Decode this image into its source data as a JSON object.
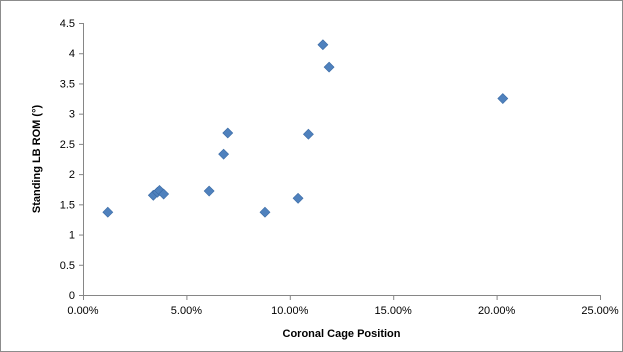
{
  "chart_data": {
    "type": "scatter",
    "title": "",
    "xlabel": "Coronal Cage Position",
    "ylabel": "Standing LB ROM (°)",
    "xlim": [
      0,
      0.25
    ],
    "ylim": [
      0,
      4.5
    ],
    "x_ticks": [
      {
        "value": 0,
        "label": "0.00%"
      },
      {
        "value": 0.05,
        "label": "5.00%"
      },
      {
        "value": 0.1,
        "label": "10.00%"
      },
      {
        "value": 0.15,
        "label": "15.00%"
      },
      {
        "value": 0.2,
        "label": "20.00%"
      },
      {
        "value": 0.25,
        "label": "25.00%"
      }
    ],
    "y_ticks": [
      {
        "value": 0,
        "label": "0"
      },
      {
        "value": 0.5,
        "label": "0.5"
      },
      {
        "value": 1,
        "label": "1"
      },
      {
        "value": 1.5,
        "label": "1.5"
      },
      {
        "value": 2,
        "label": "2"
      },
      {
        "value": 2.5,
        "label": "2.5"
      },
      {
        "value": 3,
        "label": "3"
      },
      {
        "value": 3.5,
        "label": "3.5"
      },
      {
        "value": 4,
        "label": "4"
      },
      {
        "value": 4.5,
        "label": "4.5"
      }
    ],
    "grid": false,
    "legend": "none",
    "marker": "diamond",
    "color": "#4f81bd",
    "points": [
      {
        "x": 0.012,
        "y": 1.37
      },
      {
        "x": 0.034,
        "y": 1.65
      },
      {
        "x": 0.036,
        "y": 1.7
      },
      {
        "x": 0.037,
        "y": 1.73
      },
      {
        "x": 0.039,
        "y": 1.67
      },
      {
        "x": 0.061,
        "y": 1.72
      },
      {
        "x": 0.068,
        "y": 2.33
      },
      {
        "x": 0.07,
        "y": 2.68
      },
      {
        "x": 0.088,
        "y": 1.37
      },
      {
        "x": 0.104,
        "y": 1.6
      },
      {
        "x": 0.109,
        "y": 2.66
      },
      {
        "x": 0.116,
        "y": 4.14
      },
      {
        "x": 0.119,
        "y": 3.77
      },
      {
        "x": 0.203,
        "y": 3.25
      }
    ]
  }
}
